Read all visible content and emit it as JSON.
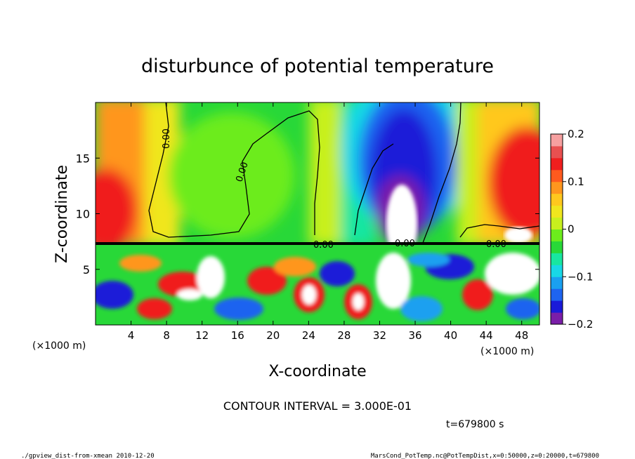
{
  "chart_data": {
    "type": "heatmap",
    "title": "disturbunce of potential temperature",
    "xlabel": "X-coordinate",
    "ylabel": "Z-coordinate",
    "x_unit_left": "(×1000 m)",
    "x_unit_right": "(×1000 m)",
    "xlim": [
      0,
      50
    ],
    "ylim": [
      0,
      20
    ],
    "xticks": [
      "4",
      "8",
      "12",
      "16",
      "20",
      "24",
      "28",
      "32",
      "36",
      "40",
      "44",
      "48"
    ],
    "xtick_values": [
      4,
      8,
      12,
      16,
      20,
      24,
      28,
      32,
      36,
      40,
      44,
      48
    ],
    "yticks": [
      "5",
      "10",
      "15"
    ],
    "ytick_values": [
      5,
      10,
      15
    ],
    "colorbar": {
      "range": [
        -0.2,
        0.2
      ],
      "tick_labels": [
        "0.2",
        "0.1",
        "0",
        "−0.1",
        "−0.2"
      ],
      "tick_values": [
        0.2,
        0.1,
        0,
        -0.1,
        -0.2
      ],
      "colors": [
        "#7a1ea8",
        "#1a1ad8",
        "#1e64f0",
        "#1aa0f0",
        "#18d8e6",
        "#18e6a0",
        "#28d838",
        "#6cec1c",
        "#c8f01e",
        "#f0e61e",
        "#ffc81e",
        "#ff961e",
        "#ff5a1e",
        "#f01e1e",
        "#e85050",
        "#f6a0a0"
      ]
    },
    "contour_labels": [
      "0.00",
      "0.00",
      "0.00",
      "0.00",
      "0.00"
    ],
    "contour_interval": "CONTOUR INTERVAL = 3.000E-01",
    "time": "t=679800 s"
  },
  "footer": {
    "left": "./gpview_dist-from-xmean 2010-12-20",
    "right": "MarsCond_PotTemp.nc@PotTempDist,x=0:50000,z=0:20000,t=679800"
  }
}
